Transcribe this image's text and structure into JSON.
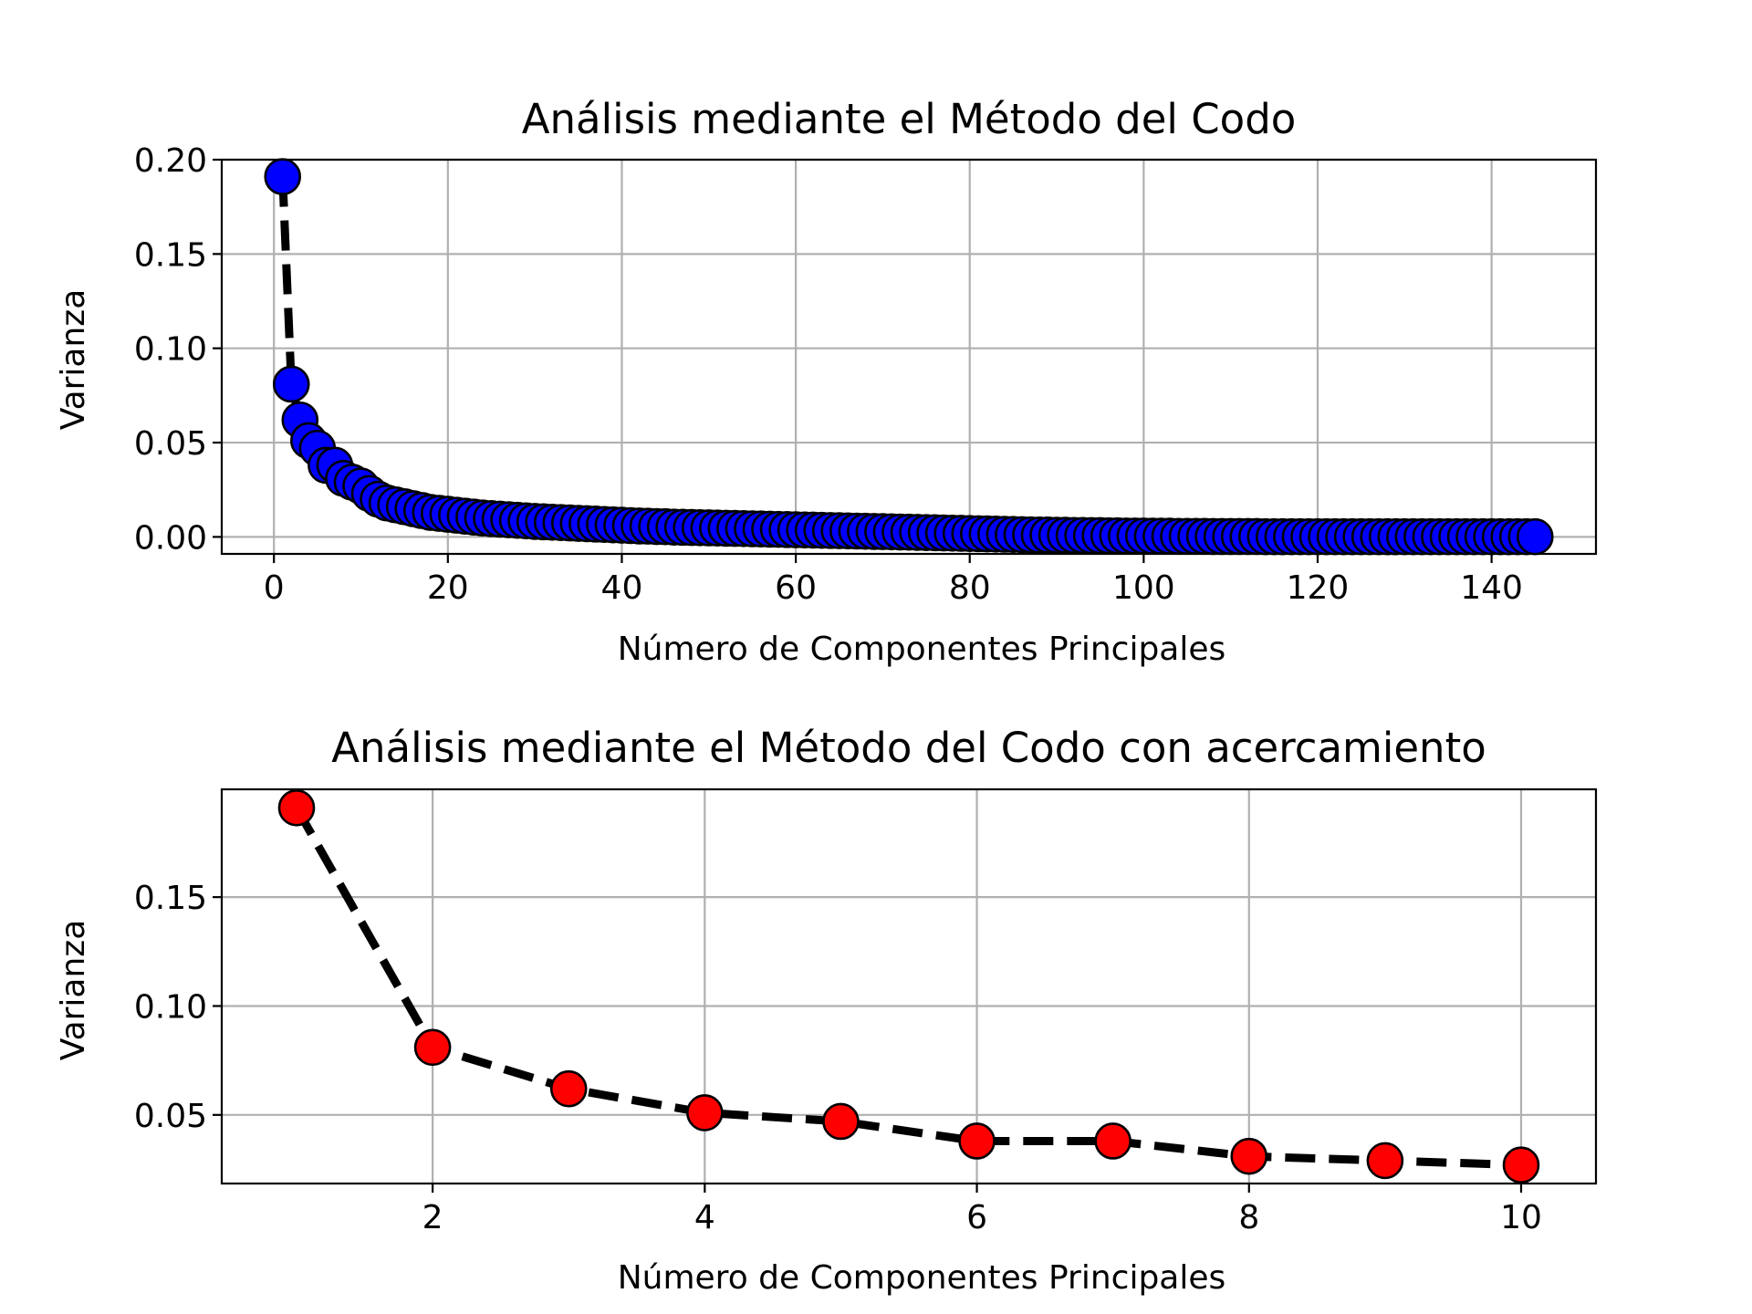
{
  "chart_data": [
    {
      "type": "line",
      "title": "Análisis mediante el Método del Codo",
      "xlabel": "Número de Componentes Principales",
      "ylabel": "Varianza",
      "xlim": [
        -6,
        152
      ],
      "ylim": [
        -0.009,
        0.2
      ],
      "xticks": [
        0,
        20,
        40,
        60,
        80,
        100,
        120,
        140
      ],
      "xtick_labels": [
        "0",
        "20",
        "40",
        "60",
        "80",
        "100",
        "120",
        "140"
      ],
      "yticks": [
        0.0,
        0.05,
        0.1,
        0.15,
        0.2
      ],
      "ytick_labels": [
        "0.00",
        "0.05",
        "0.10",
        "0.15",
        "0.20"
      ],
      "grid": true,
      "line_style": "dashed",
      "line_color": "#000000",
      "marker_color": "#0000ff",
      "marker_edge_color": "#000000",
      "series": [
        {
          "x": [
            1,
            2,
            3,
            4,
            5,
            6,
            7,
            8,
            9,
            10,
            11,
            12,
            13,
            14,
            15,
            16,
            17,
            18,
            19,
            20,
            21,
            22,
            23,
            24,
            25,
            26,
            27,
            28,
            29,
            30,
            31,
            32,
            33,
            34,
            35,
            36,
            37,
            38,
            39,
            40,
            41,
            42,
            43,
            44,
            45,
            46,
            47,
            48,
            49,
            50,
            51,
            52,
            53,
            54,
            55,
            56,
            57,
            58,
            59,
            60,
            61,
            62,
            63,
            64,
            65,
            66,
            67,
            68,
            69,
            70,
            71,
            72,
            73,
            74,
            75,
            76,
            77,
            78,
            79,
            80,
            81,
            82,
            83,
            84,
            85,
            86,
            87,
            88,
            89,
            90,
            91,
            92,
            93,
            94,
            95,
            96,
            97,
            98,
            99,
            100,
            101,
            102,
            103,
            104,
            105,
            106,
            107,
            108,
            109,
            110,
            111,
            112,
            113,
            114,
            115,
            116,
            117,
            118,
            119,
            120,
            121,
            122,
            123,
            124,
            125,
            126,
            127,
            128,
            129,
            130,
            131,
            132,
            133,
            134,
            135,
            136,
            137,
            138,
            139,
            140,
            141,
            142,
            143,
            144,
            145
          ],
          "y": [
            0.191,
            0.081,
            0.062,
            0.051,
            0.047,
            0.038,
            0.038,
            0.031,
            0.029,
            0.027,
            0.023,
            0.02,
            0.018,
            0.017,
            0.016,
            0.015,
            0.014,
            0.013,
            0.0125,
            0.012,
            0.0115,
            0.011,
            0.0105,
            0.01,
            0.0097,
            0.0094,
            0.0091,
            0.0088,
            0.0085,
            0.0082,
            0.008,
            0.0078,
            0.0076,
            0.0074,
            0.0072,
            0.007,
            0.0068,
            0.0066,
            0.0064,
            0.0062,
            0.006,
            0.0058,
            0.0057,
            0.0055,
            0.0054,
            0.0052,
            0.0051,
            0.005,
            0.0049,
            0.0048,
            0.0047,
            0.0046,
            0.0045,
            0.0044,
            0.0043,
            0.0042,
            0.0041,
            0.004,
            0.0039,
            0.0038,
            0.0037,
            0.0036,
            0.0035,
            0.0034,
            0.0033,
            0.0032,
            0.0031,
            0.003,
            0.0029,
            0.0028,
            0.0027,
            0.0026,
            0.0025,
            0.0024,
            0.0023,
            0.0022,
            0.0021,
            0.002,
            0.0019,
            0.0018,
            0.0017,
            0.0016,
            0.0015,
            0.0014,
            0.0013,
            0.0012,
            0.0011,
            0.001,
            0.001,
            0.0009,
            0.0009,
            0.0008,
            0.0008,
            0.0007,
            0.0007,
            0.0006,
            0.0006,
            0.0005,
            0.0005,
            0.0005,
            0.0004,
            0.0004,
            0.0004,
            0.0003,
            0.0003,
            0.0003,
            0.0003,
            0.0002,
            0.0002,
            0.0002,
            0.0002,
            0.0002,
            0.0002,
            0.0001,
            0.0001,
            0.0001,
            0.0001,
            0.0001,
            0.0001,
            0.0001,
            0.0001,
            0.0001,
            0.0001,
            0.0001,
            0.0001,
            0.0001,
            0.0001,
            0.0001,
            0.0001,
            0.0001,
            0.0001,
            0.0001,
            0.0001,
            0.0001,
            0.0001,
            0.0001,
            0.0001,
            0.0001,
            0.0001,
            0.0001,
            0.0001,
            0.0001,
            0.0001,
            0.0001,
            0.0001
          ]
        }
      ]
    },
    {
      "type": "line",
      "title": "Análisis mediante el Método del Codo con acercamiento",
      "xlabel": "Número de Componentes Principales",
      "ylabel": "Varianza",
      "xlim": [
        0.45,
        10.55
      ],
      "ylim": [
        0.0185,
        0.1995
      ],
      "xticks": [
        2,
        4,
        6,
        8,
        10
      ],
      "xtick_labels": [
        "2",
        "4",
        "6",
        "8",
        "10"
      ],
      "yticks": [
        0.05,
        0.1,
        0.15
      ],
      "ytick_labels": [
        "0.05",
        "0.10",
        "0.15"
      ],
      "grid": true,
      "line_style": "dashed",
      "line_color": "#000000",
      "marker_color": "#ff0000",
      "marker_edge_color": "#000000",
      "series": [
        {
          "x": [
            1,
            2,
            3,
            4,
            5,
            6,
            7,
            8,
            9,
            10
          ],
          "y": [
            0.191,
            0.081,
            0.062,
            0.051,
            0.047,
            0.038,
            0.038,
            0.031,
            0.029,
            0.027
          ]
        }
      ]
    }
  ]
}
